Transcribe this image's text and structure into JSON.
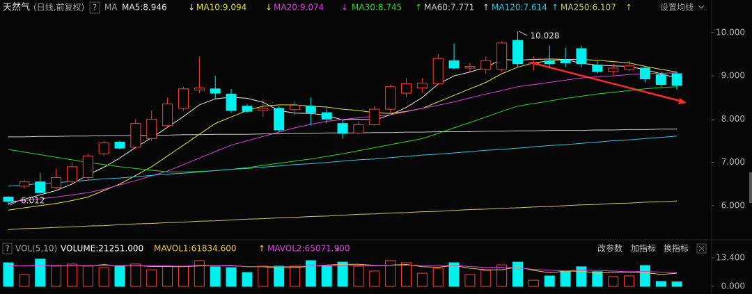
{
  "chart_data": {
    "type": "candlestick",
    "title": "天然气",
    "subtitle": "(日线,前复权)",
    "help": "?",
    "ma_label": "MA",
    "settings": "设置均线",
    "ylim": [
      5.26,
      10.4
    ],
    "yticks": [
      {
        "value": 10,
        "label": "10.000"
      },
      {
        "value": 9,
        "label": "9.000"
      },
      {
        "value": 8,
        "label": "8.000"
      },
      {
        "value": 7,
        "label": "7.000"
      },
      {
        "value": 6,
        "label": "6.000"
      }
    ],
    "up_color": "#ff3c3c",
    "down_color": "#00f0f0",
    "open": [
      6.2,
      6.45,
      6.55,
      6.42,
      6.55,
      6.65,
      7.2,
      7.47,
      7.35,
      7.55,
      7.85,
      8.25,
      8.67,
      8.7,
      8.58,
      8.3,
      8.2,
      8.25,
      8.22,
      8.3,
      8.15,
      7.9,
      7.68,
      7.87,
      8.23,
      8.6,
      8.72,
      8.82,
      9.35,
      9.18,
      9.15,
      9.15,
      9.82,
      9.28,
      9.35,
      9.37,
      9.63,
      9.25,
      9.1,
      9.15,
      9.18,
      9.03,
      9.05
    ],
    "high": [
      6.22,
      6.6,
      6.75,
      6.85,
      7.0,
      7.2,
      7.5,
      7.5,
      8.0,
      8.2,
      8.5,
      8.75,
      9.45,
      9.0,
      8.7,
      8.35,
      8.45,
      8.3,
      8.4,
      8.5,
      8.25,
      7.98,
      7.95,
      8.3,
      8.8,
      8.95,
      8.95,
      9.5,
      9.75,
      9.3,
      9.45,
      9.8,
      10.028,
      9.45,
      9.7,
      9.65,
      9.7,
      9.35,
      9.3,
      9.35,
      9.2,
      9.1,
      9.1
    ],
    "low": [
      6.012,
      6.4,
      6.28,
      6.38,
      6.5,
      6.6,
      7.15,
      7.3,
      7.3,
      7.5,
      7.8,
      8.2,
      8.6,
      8.45,
      8.15,
      8.15,
      8.05,
      7.7,
      8.1,
      7.85,
      7.9,
      7.55,
      7.65,
      7.85,
      8.15,
      8.5,
      8.6,
      8.8,
      9.15,
      9.1,
      9.05,
      9.1,
      9.2,
      9.12,
      9.2,
      9.2,
      9.2,
      9.05,
      9.0,
      9.1,
      8.85,
      8.75,
      8.68
    ],
    "close": [
      6.1,
      6.55,
      6.3,
      6.65,
      6.9,
      7.15,
      7.45,
      7.33,
      7.9,
      8.0,
      8.35,
      8.7,
      8.72,
      8.6,
      8.2,
      8.18,
      8.25,
      7.75,
      8.32,
      8.15,
      8.0,
      7.67,
      7.87,
      8.23,
      8.75,
      8.82,
      8.83,
      9.4,
      9.18,
      9.22,
      9.35,
      9.76,
      9.28,
      9.3,
      9.28,
      9.3,
      9.28,
      9.1,
      9.18,
      9.23,
      8.93,
      8.8,
      8.78
    ],
    "series": [
      {
        "legend": "MA5:8.946",
        "trend": "↓",
        "color": "#e8e8e8",
        "values": [
          6.05,
          6.15,
          6.25,
          6.35,
          6.5,
          6.71,
          6.89,
          7.1,
          7.35,
          7.57,
          7.81,
          8.06,
          8.33,
          8.47,
          8.51,
          8.48,
          8.39,
          8.2,
          8.14,
          8.13,
          8.09,
          7.98,
          8.0,
          7.98,
          8.1,
          8.27,
          8.5,
          8.81,
          9.0,
          9.09,
          9.2,
          9.38,
          9.36,
          9.38,
          9.39,
          9.38,
          9.29,
          9.25,
          9.23,
          9.22,
          9.14,
          9.05,
          8.95
        ]
      },
      {
        "legend": "MA10:9.094",
        "trend": "↓",
        "color": "#e6e62a",
        "values": [
          5.9,
          5.95,
          6.0,
          6.05,
          6.12,
          6.2,
          6.35,
          6.5,
          6.7,
          6.9,
          7.15,
          7.4,
          7.65,
          7.9,
          8.05,
          8.2,
          8.3,
          8.33,
          8.33,
          8.3,
          8.28,
          8.23,
          8.2,
          8.15,
          8.13,
          8.18,
          8.25,
          8.4,
          8.55,
          8.7,
          8.85,
          9.05,
          9.2,
          9.3,
          9.35,
          9.38,
          9.38,
          9.36,
          9.33,
          9.3,
          9.22,
          9.15,
          9.09
        ]
      },
      {
        "legend": "MA20:9.074",
        "trend": "↓",
        "color": "#e040e0",
        "values": [
          6.1,
          6.12,
          6.16,
          6.2,
          6.25,
          6.3,
          6.38,
          6.48,
          6.58,
          6.69,
          6.8,
          6.95,
          7.1,
          7.25,
          7.4,
          7.5,
          7.6,
          7.7,
          7.8,
          7.88,
          7.95,
          7.99,
          8.03,
          8.07,
          8.1,
          8.17,
          8.25,
          8.32,
          8.4,
          8.49,
          8.58,
          8.66,
          8.75,
          8.8,
          8.85,
          8.9,
          8.95,
          8.98,
          9.0,
          9.03,
          9.05,
          9.06,
          9.07
        ]
      },
      {
        "legend": "MA30:8.745",
        "trend": "↑",
        "color": "#22dd22",
        "values": [
          7.3,
          7.24,
          7.18,
          7.12,
          7.06,
          7.0,
          6.95,
          6.9,
          6.86,
          6.82,
          6.78,
          6.78,
          6.79,
          6.81,
          6.84,
          6.88,
          6.93,
          6.98,
          7.03,
          7.08,
          7.14,
          7.2,
          7.27,
          7.34,
          7.41,
          7.48,
          7.55,
          7.67,
          7.8,
          7.92,
          8.05,
          8.18,
          8.3,
          8.36,
          8.42,
          8.48,
          8.53,
          8.58,
          8.62,
          8.66,
          8.7,
          8.73,
          8.75
        ]
      },
      {
        "legend": "MA60:7.771",
        "trend": "↑",
        "color": "#c8c8c8",
        "values": [
          7.59,
          7.59,
          7.6,
          7.6,
          7.61,
          7.61,
          7.62,
          7.62,
          7.62,
          7.63,
          7.63,
          7.64,
          7.64,
          7.65,
          7.65,
          7.65,
          7.66,
          7.66,
          7.67,
          7.67,
          7.68,
          7.68,
          7.68,
          7.69,
          7.69,
          7.7,
          7.7,
          7.71,
          7.71,
          7.71,
          7.72,
          7.72,
          7.73,
          7.73,
          7.74,
          7.74,
          7.74,
          7.75,
          7.75,
          7.76,
          7.76,
          7.77,
          7.77
        ]
      },
      {
        "legend": "MA120:7.614",
        "trend": "↑",
        "color": "#33c6dd",
        "values": [
          6.45,
          6.48,
          6.51,
          6.53,
          6.56,
          6.59,
          6.62,
          6.64,
          6.67,
          6.7,
          6.73,
          6.75,
          6.78,
          6.81,
          6.84,
          6.86,
          6.89,
          6.92,
          6.95,
          6.97,
          7.0,
          7.03,
          7.06,
          7.08,
          7.11,
          7.14,
          7.17,
          7.19,
          7.22,
          7.25,
          7.28,
          7.3,
          7.33,
          7.36,
          7.39,
          7.41,
          7.44,
          7.47,
          7.5,
          7.52,
          7.55,
          7.58,
          7.61
        ]
      },
      {
        "legend": "MA250:6.107",
        "trend": "↑",
        "color": "#c8c864",
        "values": [
          5.45,
          5.47,
          5.48,
          5.5,
          5.51,
          5.53,
          5.54,
          5.56,
          5.58,
          5.59,
          5.61,
          5.62,
          5.64,
          5.65,
          5.67,
          5.69,
          5.7,
          5.72,
          5.73,
          5.75,
          5.76,
          5.78,
          5.8,
          5.81,
          5.83,
          5.84,
          5.86,
          5.87,
          5.89,
          5.91,
          5.92,
          5.94,
          5.95,
          5.97,
          5.98,
          6.0,
          6.02,
          6.03,
          6.05,
          6.06,
          6.08,
          6.09,
          6.11
        ]
      }
    ],
    "volume": {
      "help": "?",
      "label": "VOL(5,10)",
      "legend": "VOLUME:21251.000",
      "buttons": [
        "改参数",
        "加指标",
        "换指标"
      ],
      "ylim": [
        0,
        15.03
      ],
      "yticks": [
        {
          "value": 13.4,
          "label": "13.400"
        },
        {
          "value": 0,
          "label": "0.000"
        }
      ],
      "values": [
        11.1,
        5.6,
        12.8,
        9.5,
        10.5,
        9.5,
        8.8,
        9.8,
        10.5,
        7.8,
        9.5,
        9.5,
        12.1,
        9.2,
        8.8,
        6.5,
        9.5,
        9.5,
        9.5,
        12.1,
        9.5,
        11.4,
        9.5,
        7.2,
        12.1,
        11.1,
        6.2,
        8.5,
        11.1,
        5.6,
        7.5,
        10.1,
        11.4,
        2.9,
        4.9,
        7.2,
        9.2,
        6.9,
        4.6,
        4.9,
        9.8,
        2.3,
        2.1251
      ],
      "series": [
        {
          "legend": "MAVOL1:61834.600",
          "trend": "↑",
          "color": "#e8c84a",
          "values": [
            9.8,
            9.6,
            9.9,
            9.7,
            9.9,
            9.6,
            10.2,
            9.6,
            9.8,
            9.3,
            9.3,
            9.2,
            9.6,
            9.7,
            9.8,
            9.2,
            9.2,
            8.7,
            8.9,
            9.4,
            10.0,
            10.4,
            10.4,
            9.9,
            10.0,
            10.3,
            9.2,
            9.0,
            9.8,
            8.5,
            7.8,
            7.8,
            9.1,
            7.5,
            6.4,
            7.1,
            7.1,
            6.2,
            6.6,
            6.6,
            6.5,
            5.6,
            6.18
          ]
        },
        {
          "legend": "MAVOL2:65071.900",
          "trend": "↓",
          "color": "#e040e0",
          "values": [
            9.6,
            9.6,
            9.7,
            9.7,
            9.8,
            9.7,
            9.9,
            9.7,
            9.8,
            9.6,
            9.6,
            9.4,
            9.9,
            9.7,
            9.6,
            9.3,
            9.3,
            9.2,
            9.3,
            9.5,
            9.6,
            9.8,
            9.8,
            9.7,
            9.9,
            10.0,
            9.8,
            9.7,
            9.9,
            9.3,
            8.9,
            9.0,
            8.7,
            8.0,
            7.6,
            7.3,
            7.6,
            7.5,
            7.2,
            6.9,
            7.0,
            6.7,
            6.51
          ]
        }
      ]
    }
  }
}
